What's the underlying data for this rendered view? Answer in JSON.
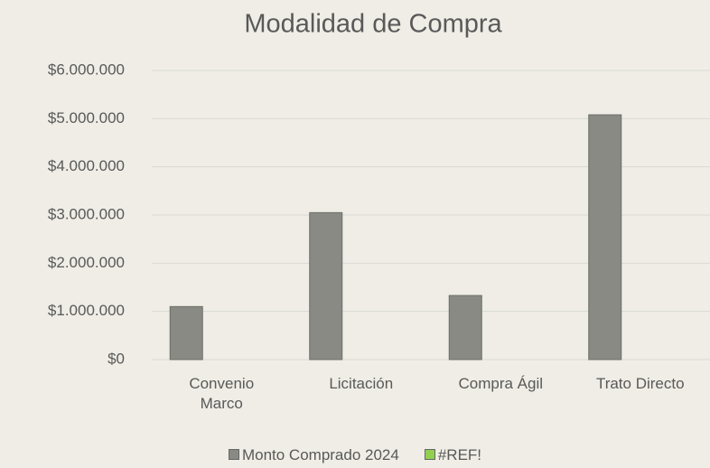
{
  "chart_data": {
    "type": "bar",
    "title": "Modalidad de Compra",
    "categories": [
      "Convenio Marco",
      "Licitación",
      "Compra Ágil",
      "Trato Directo"
    ],
    "series": [
      {
        "name": "Monto Comprado 2024",
        "color": "#8a8a84",
        "values": [
          1100000,
          3050000,
          1330000,
          5080000
        ]
      },
      {
        "name": "#REF!",
        "color": "#92d050",
        "values": [
          null,
          null,
          null,
          null
        ]
      }
    ],
    "ylim": [
      0,
      6000000
    ],
    "yticks": [
      {
        "value": 0,
        "label": "$0"
      },
      {
        "value": 1000000,
        "label": "$1.000.000"
      },
      {
        "value": 2000000,
        "label": "$2.000.000"
      },
      {
        "value": 3000000,
        "label": "$3.000.000"
      },
      {
        "value": 4000000,
        "label": "$4.000.000"
      },
      {
        "value": 5000000,
        "label": "$5.000.000"
      },
      {
        "value": 6000000,
        "label": "$6.000.000"
      }
    ],
    "grid": true,
    "legend": "bottom"
  }
}
